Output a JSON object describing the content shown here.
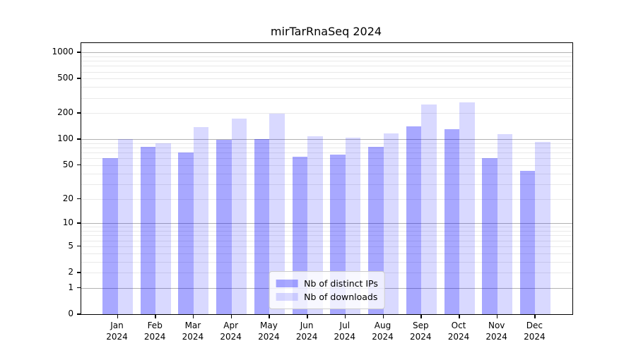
{
  "title": "mirTarRnaSeq 2024",
  "colors": {
    "ips_bar": "rgba(0,0,255,0.34)",
    "downloads_bar": "rgba(0,0,255,0.15)",
    "major_grid": "#b2b2b2",
    "minor_grid": "#e9e9e9",
    "spine": "#000000",
    "legend_border": "#cccccc",
    "legend_bg": "rgba(255,255,255,0.8)"
  },
  "y_axis": {
    "tick_values": [
      0,
      1,
      2,
      5,
      10,
      20,
      50,
      100,
      200,
      500,
      1000
    ],
    "tick_labels": [
      "0",
      "1",
      "2",
      "5",
      "10",
      "20",
      "50",
      "100",
      "200",
      "500",
      "1000"
    ],
    "grid_major": [
      1,
      10,
      100,
      1000
    ]
  },
  "x_axis": {
    "months": [
      "Jan",
      "Feb",
      "Mar",
      "Apr",
      "May",
      "Jun",
      "Jul",
      "Aug",
      "Sep",
      "Oct",
      "Nov",
      "Dec"
    ],
    "year": "2024"
  },
  "legend": {
    "items": [
      {
        "label": "Nb of distinct IPs",
        "color_key": "ips_bar"
      },
      {
        "label": "Nb of downloads",
        "color_key": "downloads_bar"
      }
    ]
  },
  "chart_data": {
    "type": "bar",
    "title": "mirTarRnaSeq 2024",
    "categories": [
      "Jan 2024",
      "Feb 2024",
      "Mar 2024",
      "Apr 2024",
      "May 2024",
      "Jun 2024",
      "Jul 2024",
      "Aug 2024",
      "Sep 2024",
      "Oct 2024",
      "Nov 2024",
      "Dec 2024"
    ],
    "series": [
      {
        "name": "Nb of distinct IPs",
        "values": [
          60,
          82,
          70,
          99,
          101,
          63,
          67,
          82,
          142,
          132,
          61,
          43
        ]
      },
      {
        "name": "Nb of downloads",
        "values": [
          100,
          90,
          138,
          172,
          198,
          109,
          104,
          116,
          252,
          268,
          115,
          93
        ]
      }
    ],
    "yscale": "log10(value+1)",
    "yticks": [
      0,
      1,
      2,
      5,
      10,
      20,
      50,
      100,
      200,
      500,
      1000
    ],
    "ylim": [
      0,
      1280
    ],
    "grid": true,
    "legend_position": "lower center"
  }
}
